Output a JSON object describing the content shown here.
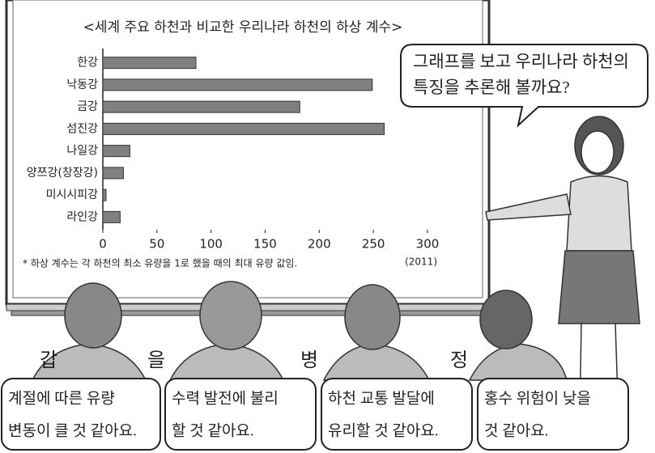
{
  "chart_data": {
    "type": "bar",
    "orientation": "horizontal",
    "title": "<세계 주요 하천과 비교한 우리나라 하천의 하상 계수>",
    "categories": [
      "한강",
      "낙동강",
      "금강",
      "섬진강",
      "나일강",
      "양쯔강(창장강)",
      "미시시피강",
      "라인강"
    ],
    "values": [
      86,
      249,
      182,
      260,
      25,
      19,
      3,
      16
    ],
    "color": "#808080",
    "xlim": [
      0,
      300
    ],
    "xticks": [
      0,
      50,
      100,
      150,
      200,
      250,
      300
    ],
    "note": "* 하상 계수는 각 하천의 최소 유량을 1로 했을 때의 최대 유량 값임.",
    "year": "(2011)"
  },
  "teacher_bubble": {
    "lines": [
      "그래프를 보고 우리나라 하천의",
      "특징을 추론해 볼까요?"
    ]
  },
  "students": [
    {
      "name": "갑",
      "lines": [
        "계절에 따른 유량",
        "변동이 클 것 같아요."
      ]
    },
    {
      "name": "을",
      "lines": [
        "수력 발전에 불리",
        "할 것 같아요."
      ]
    },
    {
      "name": "병",
      "lines": [
        "하천 교통 발달에",
        "유리할 것 같아요."
      ]
    },
    {
      "name": "정",
      "lines": [
        "홍수 위험이 낮을",
        "것 같아요."
      ]
    }
  ]
}
